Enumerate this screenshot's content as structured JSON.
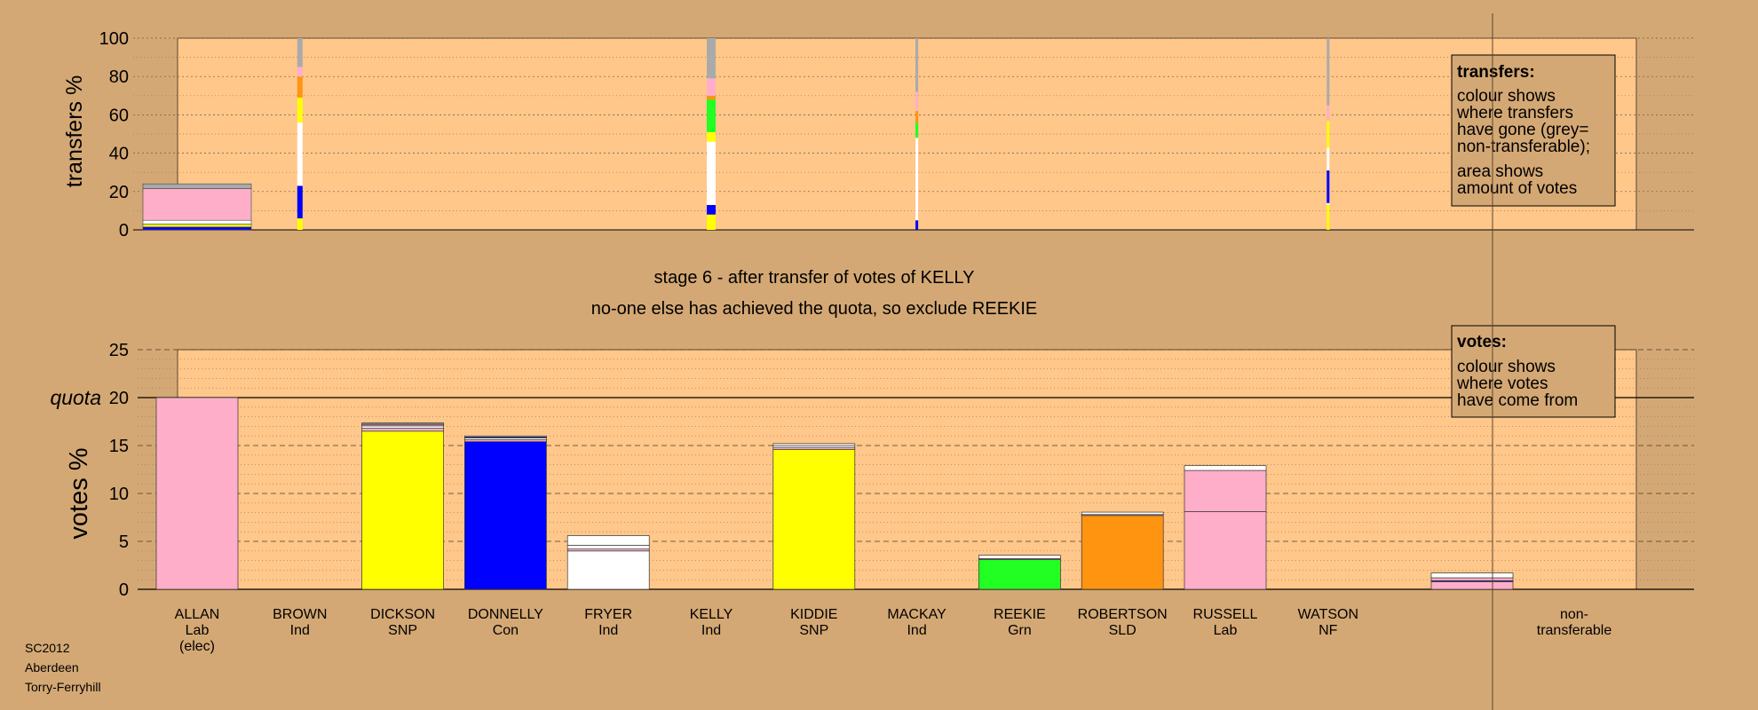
{
  "footer": {
    "line1": "SC2012",
    "line2": "Aberdeen",
    "line3": "Torry-Ferryhill"
  },
  "stage_title": "stage 6 - after transfer of votes of KELLY",
  "stage_subtitle": "no-one else has achieved the quota, so exclude REEKIE",
  "colors": {
    "Lab": "#ffaec9",
    "SNP": "#ffff00",
    "Con": "#0000ff",
    "Ind": "#ffffff",
    "Grn": "#22ff22",
    "SLD": "#ff9411",
    "NF": "#ffffff",
    "nontransferable": "#aaaaaa",
    "panel": "#ffc78a",
    "background": "#d4a874"
  },
  "chart_data": [
    {
      "type": "bar",
      "id": "transfers",
      "ylabel": "transfers %",
      "ylim": [
        0,
        100
      ],
      "yticks": [
        0,
        20,
        40,
        60,
        80,
        100
      ],
      "grid": true,
      "legend": {
        "title": "transfers:",
        "lines": [
          "colour shows",
          "where transfers",
          "have gone (grey=",
          "non-transferable);",
          "area shows",
          "amount of votes"
        ],
        "position": "top-right"
      },
      "columns": [
        {
          "candidate": "ALLAN",
          "segments": [
            {
              "party": "Con",
              "value": 1.5
            },
            {
              "party": "SNP",
              "value": 1.5
            },
            {
              "party": "Ind",
              "value": 2
            },
            {
              "party": "Lab",
              "value": 16.5
            },
            {
              "party": "nontransferable",
              "value": 2.5
            }
          ]
        },
        {
          "candidate": "BROWN",
          "segments": [
            {
              "party": "SNP",
              "value": 6
            },
            {
              "party": "Con",
              "value": 17
            },
            {
              "party": "Ind",
              "value": 33
            },
            {
              "party": "SNP",
              "value": 13
            },
            {
              "party": "SLD",
              "value": 11
            },
            {
              "party": "Lab",
              "value": 5
            },
            {
              "party": "nontransferable",
              "value": 15
            }
          ]
        },
        {
          "candidate": "KELLY",
          "segments": [
            {
              "party": "SNP",
              "value": 8
            },
            {
              "party": "Con",
              "value": 5
            },
            {
              "party": "Ind",
              "value": 33
            },
            {
              "party": "SNP",
              "value": 5
            },
            {
              "party": "Grn",
              "value": 17
            },
            {
              "party": "SLD",
              "value": 2
            },
            {
              "party": "Lab",
              "value": 9
            },
            {
              "party": "nontransferable",
              "value": 21
            }
          ]
        },
        {
          "candidate": "MACKAY",
          "segments": [
            {
              "party": "Con",
              "value": 5
            },
            {
              "party": "Ind",
              "value": 43
            },
            {
              "party": "Grn",
              "value": 8
            },
            {
              "party": "SLD",
              "value": 6
            },
            {
              "party": "Lab",
              "value": 10
            },
            {
              "party": "nontransferable",
              "value": 28
            }
          ]
        },
        {
          "candidate": "WATSON",
          "segments": [
            {
              "party": "SNP",
              "value": 13
            },
            {
              "party": "Ind",
              "value": 1
            },
            {
              "party": "Con",
              "value": 17
            },
            {
              "party": "Ind",
              "value": 12
            },
            {
              "party": "SNP",
              "value": 14
            },
            {
              "party": "Lab",
              "value": 8
            },
            {
              "party": "nontransferable",
              "value": 35
            }
          ]
        }
      ]
    },
    {
      "type": "bar",
      "id": "votes",
      "ylabel": "votes %",
      "ylim": [
        0,
        25
      ],
      "yticks": [
        0,
        5,
        10,
        15,
        20,
        25
      ],
      "quota": 20,
      "quota_label": "quota",
      "grid": true,
      "legend": {
        "title": "votes:",
        "lines": [
          "colour shows",
          "where votes",
          "have come from"
        ],
        "position": "top-right"
      },
      "categories": [
        {
          "name": "ALLAN",
          "party": "Lab",
          "note": "(elec)"
        },
        {
          "name": "BROWN",
          "party": "Ind"
        },
        {
          "name": "DICKSON",
          "party": "SNP"
        },
        {
          "name": "DONNELLY",
          "party": "Con"
        },
        {
          "name": "FRYER",
          "party": "Ind"
        },
        {
          "name": "KELLY",
          "party": "Ind"
        },
        {
          "name": "KIDDIE",
          "party": "SNP"
        },
        {
          "name": "MACKAY",
          "party": "Ind"
        },
        {
          "name": "REEKIE",
          "party": "Grn"
        },
        {
          "name": "ROBERTSON",
          "party": "SLD"
        },
        {
          "name": "RUSSELL",
          "party": "Lab"
        },
        {
          "name": "WATSON",
          "party": "NF"
        }
      ],
      "nontransferable_label": [
        "non-",
        "transferable"
      ],
      "bars": [
        {
          "candidate": "ALLAN",
          "segments": [
            {
              "party": "Lab",
              "value": 20.0
            }
          ]
        },
        {
          "candidate": "BROWN",
          "segments": []
        },
        {
          "candidate": "DICKSON",
          "segments": [
            {
              "party": "SNP",
              "value": 16.5
            },
            {
              "party": "Lab",
              "value": 0.3
            },
            {
              "party": "Ind",
              "value": 0.25
            },
            {
              "party": "Lab",
              "value": 0.15
            },
            {
              "party": "Ind",
              "value": 0.1
            },
            {
              "party": "SNP",
              "value": 0.05
            }
          ]
        },
        {
          "candidate": "DONNELLY",
          "segments": [
            {
              "party": "Con",
              "value": 15.4
            },
            {
              "party": "Lab",
              "value": 0.2
            },
            {
              "party": "Ind",
              "value": 0.2
            },
            {
              "party": "Con",
              "value": 0.1
            },
            {
              "party": "Ind",
              "value": 0.1
            }
          ]
        },
        {
          "candidate": "FRYER",
          "segments": [
            {
              "party": "Ind",
              "value": 4.0
            },
            {
              "party": "Lab",
              "value": 0.2
            },
            {
              "party": "Ind",
              "value": 0.4
            },
            {
              "party": "Ind",
              "value": 1.0
            }
          ]
        },
        {
          "candidate": "KELLY",
          "segments": []
        },
        {
          "candidate": "KIDDIE",
          "segments": [
            {
              "party": "SNP",
              "value": 14.6
            },
            {
              "party": "Lab",
              "value": 0.2
            },
            {
              "party": "Ind",
              "value": 0.2
            },
            {
              "party": "Ind",
              "value": 0.2
            }
          ]
        },
        {
          "candidate": "MACKAY",
          "segments": []
        },
        {
          "candidate": "REEKIE",
          "segments": [
            {
              "party": "Grn",
              "value": 3.1
            },
            {
              "party": "Lab",
              "value": 0.1
            },
            {
              "party": "Ind",
              "value": 0.35
            }
          ]
        },
        {
          "candidate": "ROBERTSON",
          "segments": [
            {
              "party": "SLD",
              "value": 7.7
            },
            {
              "party": "Lab",
              "value": 0.1
            },
            {
              "party": "Ind",
              "value": 0.25
            }
          ]
        },
        {
          "candidate": "RUSSELL",
          "segments": [
            {
              "party": "Lab",
              "value": 8.1
            },
            {
              "party": "Lab",
              "value": 4.3
            },
            {
              "party": "Ind",
              "value": 0.5
            }
          ]
        },
        {
          "candidate": "WATSON",
          "segments": []
        }
      ],
      "nontransferable": [
        {
          "party": "Lab",
          "value": 0.8
        },
        {
          "party": "Con",
          "value": 0.1
        },
        {
          "party": "Lab",
          "value": 0.3
        },
        {
          "party": "Ind",
          "value": 0.5
        }
      ]
    }
  ]
}
